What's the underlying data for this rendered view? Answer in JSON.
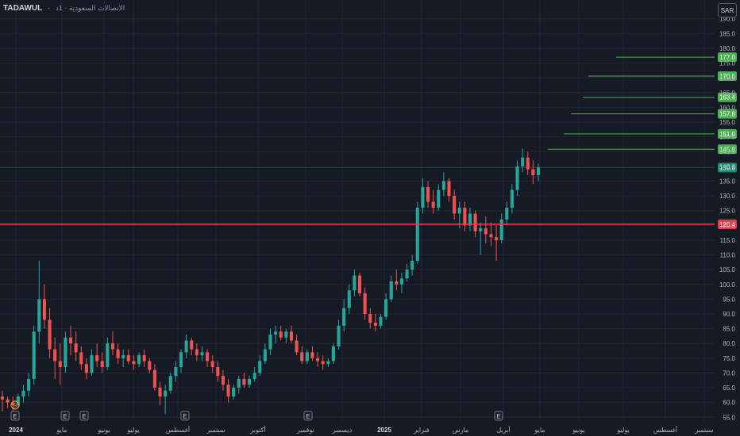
{
  "header": {
    "symbol": "TADAWUL",
    "separator": "·",
    "subtitle": "الاتصالات السعودية · 1د"
  },
  "currency_button": "SAR",
  "colors": {
    "background": "#161a25",
    "grid": "#232632",
    "up": "#26a69a",
    "down": "#ef5350",
    "support": "#f23645",
    "target": "#4caf50",
    "last": "#1e8c6f",
    "event": "#787b86",
    "dividend": "#f7a21b"
  },
  "chart_data": {
    "type": "candlestick",
    "ylim": [
      54,
      191
    ],
    "yticks": [
      55,
      60,
      65,
      70,
      75,
      80,
      85,
      90,
      95,
      100,
      105,
      110,
      115,
      120,
      125,
      130,
      135,
      140,
      145,
      150,
      155,
      160,
      165,
      170,
      175,
      180,
      185,
      190
    ],
    "x_labels": [
      "2024",
      "مايو",
      "يونيو",
      "يوليو",
      "أغسطس",
      "سبتمبر",
      "أكتوبر",
      "نوفمبر",
      "ديسمبر",
      "2025",
      "فبراير",
      "مارس",
      "أبريل",
      "مايو",
      "يونيو",
      "يوليو",
      "أغسطس",
      "سبتمبر"
    ],
    "support_level": "120.4",
    "last_price": "139.6",
    "target_levels": [
      "177.0",
      "170.6",
      "163.4",
      "157.8",
      "151.0",
      "145.8"
    ],
    "event_markers": [
      "E",
      "E",
      "E",
      "E",
      "E",
      "E"
    ],
    "dividend_marker": "S",
    "candles": [
      [
        62,
        64,
        57,
        61
      ],
      [
        61,
        62,
        58,
        60
      ],
      [
        60,
        62,
        57,
        59
      ],
      [
        59,
        63,
        58,
        62
      ],
      [
        62,
        66,
        60,
        64
      ],
      [
        64,
        70,
        62,
        68
      ],
      [
        68,
        86,
        66,
        84
      ],
      [
        84,
        108,
        80,
        95
      ],
      [
        95,
        100,
        85,
        88
      ],
      [
        88,
        92,
        75,
        78
      ],
      [
        78,
        82,
        68,
        74
      ],
      [
        74,
        80,
        66,
        72
      ],
      [
        72,
        84,
        70,
        82
      ],
      [
        82,
        86,
        76,
        80
      ],
      [
        80,
        84,
        74,
        77
      ],
      [
        77,
        79,
        71,
        73
      ],
      [
        73,
        75,
        68,
        70
      ],
      [
        70,
        78,
        69,
        76
      ],
      [
        76,
        80,
        72,
        74
      ],
      [
        74,
        77,
        70,
        72
      ],
      [
        72,
        82,
        71,
        80
      ],
      [
        80,
        84,
        76,
        78
      ],
      [
        78,
        80,
        73,
        75
      ],
      [
        75,
        78,
        72,
        76
      ],
      [
        76,
        78,
        73,
        74
      ],
      [
        74,
        76,
        71,
        73
      ],
      [
        73,
        77,
        72,
        76
      ],
      [
        76,
        78,
        72,
        74
      ],
      [
        74,
        75,
        70,
        71
      ],
      [
        71,
        73,
        64,
        65
      ],
      [
        65,
        67,
        59,
        62
      ],
      [
        62,
        66,
        56,
        64
      ],
      [
        64,
        70,
        63,
        69
      ],
      [
        69,
        74,
        67,
        72
      ],
      [
        72,
        78,
        70,
        77
      ],
      [
        77,
        83,
        75,
        81
      ],
      [
        81,
        82,
        76,
        78
      ],
      [
        78,
        80,
        74,
        76
      ],
      [
        76,
        79,
        74,
        77
      ],
      [
        77,
        78,
        72,
        74
      ],
      [
        74,
        76,
        70,
        72
      ],
      [
        72,
        74,
        67,
        69
      ],
      [
        69,
        71,
        64,
        66
      ],
      [
        66,
        68,
        60,
        62
      ],
      [
        62,
        66,
        61,
        65
      ],
      [
        65,
        69,
        63,
        68
      ],
      [
        68,
        70,
        65,
        66
      ],
      [
        66,
        69,
        65,
        68
      ],
      [
        68,
        72,
        67,
        70
      ],
      [
        70,
        76,
        69,
        74
      ],
      [
        74,
        80,
        73,
        78
      ],
      [
        78,
        85,
        76,
        83
      ],
      [
        83,
        86,
        80,
        84
      ],
      [
        84,
        86,
        81,
        82
      ],
      [
        82,
        85,
        80,
        84
      ],
      [
        84,
        86,
        80,
        81
      ],
      [
        81,
        83,
        76,
        77
      ],
      [
        77,
        79,
        73,
        74
      ],
      [
        74,
        78,
        73,
        77
      ],
      [
        77,
        79,
        74,
        75
      ],
      [
        75,
        77,
        72,
        74
      ],
      [
        74,
        76,
        71,
        73
      ],
      [
        73,
        75,
        72,
        74
      ],
      [
        74,
        80,
        73,
        79
      ],
      [
        79,
        88,
        78,
        86
      ],
      [
        86,
        95,
        84,
        92
      ],
      [
        92,
        100,
        90,
        98
      ],
      [
        98,
        105,
        96,
        103
      ],
      [
        103,
        104,
        96,
        97
      ],
      [
        97,
        99,
        88,
        90
      ],
      [
        90,
        92,
        85,
        87
      ],
      [
        87,
        90,
        84,
        86
      ],
      [
        86,
        90,
        85,
        89
      ],
      [
        89,
        97,
        88,
        95
      ],
      [
        95,
        103,
        94,
        101
      ],
      [
        101,
        105,
        98,
        100
      ],
      [
        100,
        104,
        97,
        102
      ],
      [
        102,
        107,
        101,
        105
      ],
      [
        105,
        110,
        103,
        108
      ],
      [
        108,
        128,
        107,
        126
      ],
      [
        126,
        136,
        124,
        133
      ],
      [
        133,
        135,
        126,
        128
      ],
      [
        128,
        132,
        124,
        126
      ],
      [
        126,
        134,
        125,
        132
      ],
      [
        132,
        138,
        130,
        135
      ],
      [
        135,
        136,
        128,
        130
      ],
      [
        130,
        132,
        122,
        124
      ],
      [
        124,
        128,
        119,
        126
      ],
      [
        126,
        128,
        118,
        120
      ],
      [
        120,
        126,
        118,
        124
      ],
      [
        124,
        125,
        116,
        118
      ],
      [
        118,
        121,
        110,
        119
      ],
      [
        119,
        123,
        114,
        117
      ],
      [
        117,
        121,
        113,
        116
      ],
      [
        116,
        120,
        108,
        115
      ],
      [
        115,
        124,
        114,
        122
      ],
      [
        122,
        128,
        120,
        126
      ],
      [
        126,
        134,
        124,
        132
      ],
      [
        132,
        142,
        130,
        140
      ],
      [
        140,
        146,
        138,
        143
      ],
      [
        143,
        145,
        137,
        139
      ],
      [
        139,
        142,
        134,
        137
      ],
      [
        137,
        141,
        135,
        139.6
      ]
    ]
  }
}
